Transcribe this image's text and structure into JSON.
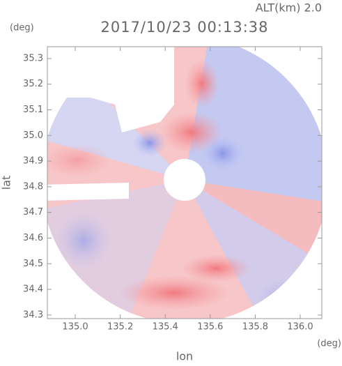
{
  "chart_data": {
    "type": "radar-image",
    "title": "2017/10/23 00:13:38",
    "subtitle": "ALT(km) 2.0",
    "x_label": "lon",
    "y_label": "lat",
    "x_unit": "(deg)",
    "y_unit": "(deg)",
    "xlim": [
      134.876,
      136.096
    ],
    "ylim": [
      34.286,
      35.346
    ],
    "xticks": [
      {
        "value": 135,
        "label": "135.0"
      },
      135.2,
      135.4,
      135.6,
      135.8,
      {
        "value": 136,
        "label": "136.0"
      }
    ],
    "yticks": [
      35.3,
      35.2,
      35.1,
      {
        "value": 35,
        "label": "35.0"
      },
      34.9,
      34.8,
      34.7,
      34.6,
      34.5,
      34.4,
      34.3
    ]
  }
}
